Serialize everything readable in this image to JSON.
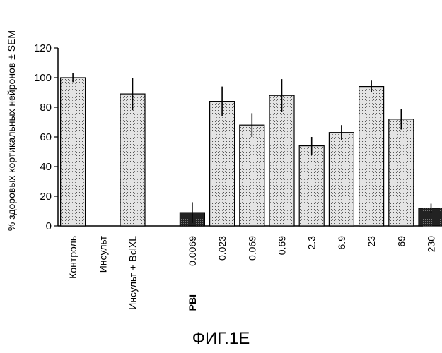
{
  "chart_data": {
    "type": "bar",
    "ylabel": "% здоровых кортикальных нейронов ± SEM",
    "ylim": [
      0,
      120
    ],
    "yticks": [
      0,
      20,
      40,
      60,
      80,
      100,
      120
    ],
    "categories": [
      "Контроль",
      "Инсульт",
      "Инсульт + BclXL",
      "",
      "0.0069",
      "0.023",
      "0.069",
      "0.69",
      "2.3",
      "6.9",
      "23",
      "69",
      "230"
    ],
    "values": [
      100,
      0,
      89,
      null,
      9,
      84,
      68,
      88,
      54,
      63,
      94,
      72,
      12
    ],
    "errors": [
      3,
      0,
      11,
      null,
      7,
      10,
      8,
      11,
      6,
      5,
      4,
      7,
      3
    ],
    "bar_style": [
      "light",
      "light",
      "light",
      null,
      "dark",
      "light",
      "light",
      "light",
      "light",
      "light",
      "light",
      "light",
      "dark"
    ],
    "group_label": "PBI",
    "colors": {
      "light_fill": "#d2d2d2",
      "dark_fill": "#2e2e2e",
      "stroke": "#000000"
    }
  },
  "figure_caption": "ФИГ.1E"
}
